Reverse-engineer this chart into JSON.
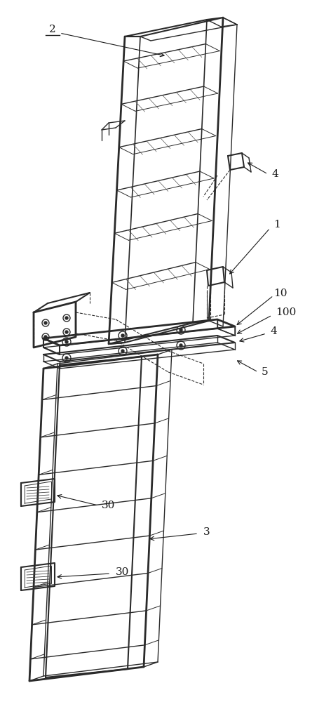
{
  "bg_color": "#ffffff",
  "line_color": "#2a2a2a",
  "figsize": [
    4.72,
    10.0
  ],
  "dpi": 100,
  "font_size": 10
}
